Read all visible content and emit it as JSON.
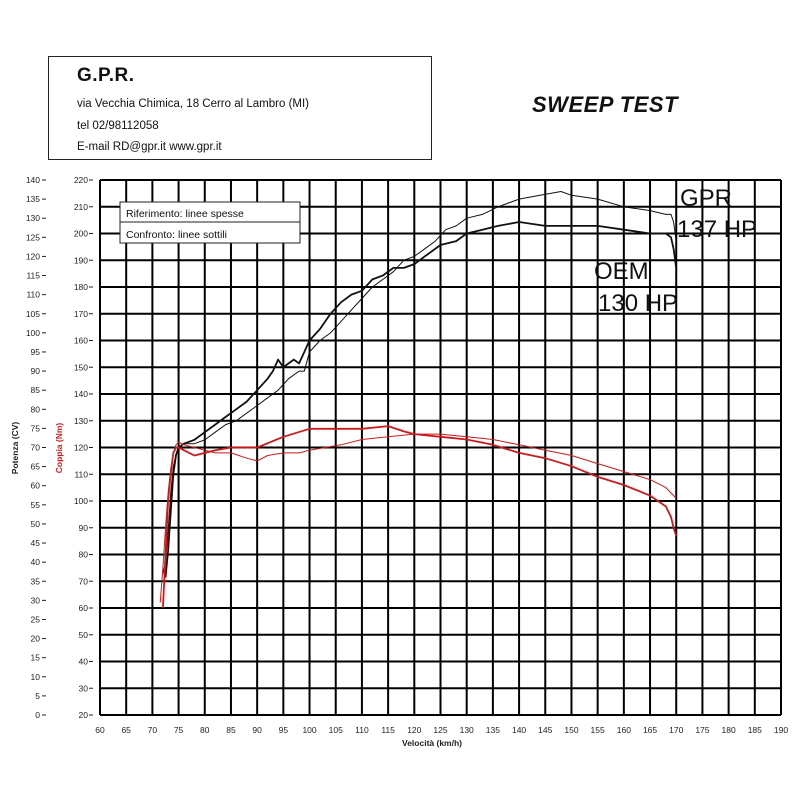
{
  "header": {
    "company": "G.P.R.",
    "address": "via Vecchia Chimica, 18 Cerro al Lambro (MI)",
    "phone": "tel 02/98112058",
    "contact": "E-mail RD@gpr.it  www.gpr.it"
  },
  "test_title": "SWEEP TEST",
  "annotations": {
    "gpr_name": "GPR",
    "gpr_value": "137 HP",
    "oem_name": "OEM",
    "oem_value": "130 HP"
  },
  "legend": {
    "line1": "Riferimento: linee spesse",
    "line2": "Confronto: linee sottili"
  },
  "colors": {
    "power": "#111111",
    "torque": "#cc1a1a",
    "grid": "#000000",
    "torque_axis": "#cc1a1a"
  },
  "chart_data": {
    "type": "line",
    "xlabel": "Velocità (km/h)",
    "ylabel_left": "Potenza (CV)",
    "ylabel_torque": "Coppia (Nm)",
    "xlim": [
      60,
      190
    ],
    "x_ticks": [
      60,
      65,
      70,
      75,
      80,
      85,
      90,
      95,
      100,
      105,
      110,
      115,
      120,
      125,
      130,
      135,
      140,
      145,
      150,
      155,
      160,
      165,
      170,
      175,
      180,
      185,
      190
    ],
    "power_axis": {
      "min": 0,
      "max": 140,
      "step": 5
    },
    "torque_axis": {
      "min": 20,
      "max": 220,
      "step": 10
    },
    "series": [
      {
        "name": "Riferimento: linee spesse",
        "quantity": "power",
        "axis": "power",
        "weight": "thick",
        "x": [
          72.5,
          73,
          73.5,
          74,
          74.5,
          75,
          76,
          78,
          80,
          82,
          84,
          86,
          88,
          90,
          92,
          93,
          94,
          95,
          96,
          97,
          98,
          99,
          100,
          102,
          104,
          106,
          108,
          110,
          112,
          114,
          116,
          118,
          120,
          122,
          125,
          128,
          130,
          133,
          136,
          140,
          145,
          150,
          155,
          160,
          165,
          168,
          169,
          169.5,
          170
        ],
        "y": [
          36,
          43,
          53,
          63,
          68,
          70,
          71,
          72,
          74,
          76,
          78,
          80,
          82,
          85,
          88,
          90,
          93,
          91,
          92,
          93,
          92,
          95,
          98,
          101,
          105,
          108,
          110,
          111,
          114,
          115,
          117,
          117,
          118,
          120,
          123,
          124,
          126,
          127,
          128,
          129,
          128,
          128,
          128,
          127,
          126,
          126,
          125,
          122,
          117
        ]
      },
      {
        "name": "Confronto: linee sottili",
        "quantity": "power",
        "axis": "power",
        "weight": "thin",
        "x": [
          72,
          72.5,
          73,
          73.5,
          74,
          74.5,
          75,
          76,
          78,
          80,
          82,
          84,
          86,
          88,
          90,
          92,
          94,
          96,
          98,
          99,
          100,
          102,
          104,
          106,
          108,
          110,
          112,
          114,
          116,
          118,
          120,
          122,
          124,
          126,
          128,
          130,
          133,
          136,
          140,
          144,
          148,
          150,
          155,
          160,
          165,
          168,
          169,
          169.5,
          170
        ],
        "y": [
          37,
          40,
          48,
          58,
          65,
          68,
          70,
          71,
          71,
          72,
          74,
          76,
          77,
          79,
          81,
          83,
          85,
          88,
          90,
          90,
          95,
          98,
          100,
          103,
          106,
          109,
          112,
          114,
          116,
          119,
          120,
          122,
          124,
          127,
          128,
          130,
          131,
          133,
          135,
          136,
          137,
          136,
          135,
          133,
          132,
          131,
          131,
          129,
          124
        ]
      },
      {
        "name": "Riferimento: linee spesse",
        "quantity": "torque",
        "axis": "torque",
        "weight": "thick",
        "x": [
          72,
          72.5,
          73,
          73.5,
          74,
          74.5,
          75,
          76,
          78,
          80,
          82,
          85,
          90,
          95,
          100,
          105,
          110,
          115,
          118,
          120,
          125,
          130,
          135,
          140,
          145,
          150,
          155,
          160,
          165,
          168,
          169,
          169.5,
          170
        ],
        "y": [
          60,
          80,
          100,
          110,
          118,
          120,
          120,
          119,
          117,
          118,
          119,
          120,
          120,
          124,
          127,
          127,
          127,
          128,
          126,
          125,
          124,
          123,
          121,
          118,
          116,
          113,
          109,
          106,
          102,
          98,
          94,
          90,
          87
        ]
      },
      {
        "name": "Confronto: linee sottili",
        "quantity": "torque",
        "axis": "torque",
        "weight": "thin",
        "x": [
          71.5,
          72,
          72.5,
          73,
          73.5,
          74,
          74.5,
          75,
          76,
          78,
          80,
          82,
          85,
          88,
          90,
          92,
          95,
          98,
          100,
          103,
          106,
          110,
          115,
          120,
          125,
          130,
          135,
          140,
          145,
          150,
          155,
          160,
          165,
          168,
          169,
          170
        ],
        "y": [
          62,
          75,
          90,
          103,
          112,
          118,
          121,
          122,
          121,
          120,
          119,
          118,
          118,
          116,
          115,
          117,
          118,
          118,
          119,
          120,
          121,
          123,
          124,
          125,
          125,
          124,
          123,
          121,
          119,
          117,
          114,
          111,
          108,
          105,
          103,
          101
        ]
      }
    ]
  }
}
